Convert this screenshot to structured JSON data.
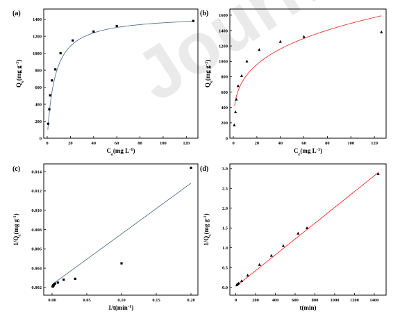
{
  "watermark": "Journal Pre",
  "colors": {
    "axis": "#000000",
    "fit_blue": "#56728f",
    "fit_red": "#e8332e",
    "points": "#000000"
  },
  "chart_data": [
    {
      "panel": "(a)",
      "type": "scatter",
      "xlabel": "C",
      "xlabel_sub": "e",
      "xlabel_unit": "(mg L",
      "ylabel": "Q",
      "ylabel_sub": "e",
      "ylabel_unit": "(mg g",
      "unit_exp": "-1",
      "unit_close": ")",
      "xlim": [
        -3,
        130
      ],
      "ylim": [
        0,
        1520
      ],
      "xticks": [
        0,
        20,
        40,
        60,
        80,
        100,
        120
      ],
      "yticks": [
        0,
        200,
        400,
        600,
        800,
        1000,
        1200,
        1400
      ],
      "xtick_labels": [
        "0",
        "20",
        "40",
        "60",
        "80",
        "100",
        "120"
      ],
      "ytick_labels": [
        "0",
        "200",
        "400",
        "600",
        "800",
        "1000",
        "1200",
        "1400"
      ],
      "marker": "square",
      "points": [
        [
          0.8,
          170
        ],
        [
          1.8,
          340
        ],
        [
          2.5,
          505
        ],
        [
          4.0,
          680
        ],
        [
          7.0,
          810
        ],
        [
          11.5,
          1000
        ],
        [
          22.0,
          1150
        ],
        [
          40.0,
          1255
        ],
        [
          60.0,
          1320
        ],
        [
          126.0,
          1380
        ]
      ],
      "fit": {
        "model": "langmuir",
        "qm": 1450,
        "kl": 0.1474,
        "color": "#56728f"
      }
    },
    {
      "panel": "(b)",
      "type": "scatter",
      "xlabel": "C",
      "xlabel_sub": "e",
      "xlabel_unit": "(mg L",
      "ylabel": "Q",
      "ylabel_sub": "e",
      "ylabel_unit": "(mg g",
      "unit_exp": "-1",
      "unit_close": ")",
      "xlim": [
        -3,
        130
      ],
      "ylim": [
        0,
        1680
      ],
      "xticks": [
        0,
        20,
        40,
        60,
        80,
        100,
        120
      ],
      "yticks": [
        0,
        200,
        400,
        600,
        800,
        1000,
        1200,
        1400,
        1600
      ],
      "xtick_labels": [
        "0",
        "20",
        "40",
        "60",
        "80",
        "100",
        "120"
      ],
      "ytick_labels": [
        "0",
        "200",
        "400",
        "600",
        "800",
        "1000",
        "1200",
        "1400",
        "1600"
      ],
      "marker": "triangle",
      "points": [
        [
          0.8,
          170
        ],
        [
          1.8,
          340
        ],
        [
          2.5,
          505
        ],
        [
          4.0,
          680
        ],
        [
          7.0,
          810
        ],
        [
          11.5,
          1000
        ],
        [
          22.0,
          1150
        ],
        [
          40.0,
          1255
        ],
        [
          60.0,
          1320
        ],
        [
          126.0,
          1380
        ]
      ],
      "fit": {
        "model": "freundlich",
        "kf": 420,
        "n": 3.63,
        "x_from": 1.0,
        "color": "#e8332e"
      }
    },
    {
      "panel": "(c)",
      "type": "scatter",
      "xlabel": "1/t(min",
      "xlabel_exp": "-1",
      "xlabel_close": ")",
      "ylabel": "1/Q",
      "ylabel_sub": "t",
      "ylabel_unit": "(mg g",
      "unit_exp": "-1",
      "unit_close": ")",
      "xlim": [
        -0.012,
        0.21
      ],
      "ylim": [
        0.0012,
        0.0148
      ],
      "xticks": [
        0.0,
        0.05,
        0.1,
        0.15,
        0.2
      ],
      "yticks": [
        0.002,
        0.004,
        0.006,
        0.008,
        0.01,
        0.012,
        0.014
      ],
      "xtick_labels": [
        "0.00",
        "0.05",
        "0.10",
        "0.15",
        "0.20"
      ],
      "ytick_labels": [
        "0.002",
        "0.004",
        "0.006",
        "0.008",
        "0.010",
        "0.012",
        "0.014"
      ],
      "marker": "square",
      "points": [
        [
          0.2,
          0.0144
        ],
        [
          0.1,
          0.0045
        ],
        [
          0.0333,
          0.0029
        ],
        [
          0.0167,
          0.0028
        ],
        [
          0.0083,
          0.0025
        ],
        [
          0.0042,
          0.0024
        ],
        [
          0.0028,
          0.0023
        ],
        [
          0.0021,
          0.0022
        ],
        [
          0.0016,
          0.0022
        ],
        [
          0.0014,
          0.0021
        ],
        [
          0.0007,
          0.0021
        ]
      ],
      "fit": {
        "model": "linear",
        "x0": 0.0,
        "y0": 0.0023,
        "x1": 0.2,
        "y1": 0.0128,
        "color": "#56728f"
      }
    },
    {
      "panel": "(d)",
      "type": "scatter",
      "xlabel": "t(min)",
      "ylabel": "1/Q",
      "ylabel_sub": "t",
      "ylabel_unit": "(mg g",
      "unit_exp": "-1",
      "unit_close": ")",
      "xlim": [
        -60,
        1520
      ],
      "ylim": [
        -0.2,
        3.12
      ],
      "xticks": [
        0,
        200,
        400,
        600,
        800,
        1000,
        1200,
        1400
      ],
      "yticks": [
        0.0,
        0.5,
        1.0,
        1.5,
        2.0,
        2.5,
        3.0
      ],
      "xtick_labels": [
        "0",
        "200",
        "400",
        "600",
        "800",
        "1000",
        "1200",
        "1400"
      ],
      "ytick_labels": [
        "0.0",
        "0.5",
        "1.0",
        "1.5",
        "2.0",
        "2.5",
        "3.0"
      ],
      "marker": "triangle",
      "points": [
        [
          10,
          0.06
        ],
        [
          20,
          0.08
        ],
        [
          30,
          0.1
        ],
        [
          60,
          0.16
        ],
        [
          120,
          0.3
        ],
        [
          240,
          0.57
        ],
        [
          360,
          0.8
        ],
        [
          480,
          1.05
        ],
        [
          630,
          1.36
        ],
        [
          720,
          1.5
        ],
        [
          1440,
          2.87
        ]
      ],
      "fit": {
        "model": "linear",
        "x0": 0,
        "y0": 0.02,
        "x1": 1440,
        "y1": 2.9,
        "color": "#e8332e"
      }
    }
  ]
}
